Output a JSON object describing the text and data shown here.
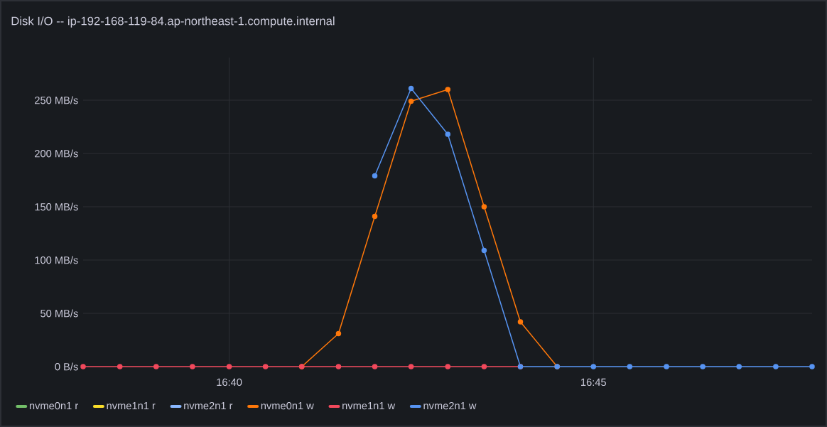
{
  "chart_data": {
    "type": "line",
    "title": "Disk I/O -- ip-192-168-119-84.ap-northeast-1.compute.internal",
    "x": [
      16.6333,
      16.6417,
      16.65,
      16.6583,
      16.6667,
      16.675,
      16.6833,
      16.6917,
      16.7,
      16.7083,
      16.7167,
      16.725,
      16.7333,
      16.7417,
      16.75,
      16.7583,
      16.7667,
      16.775,
      16.7833,
      16.7917,
      16.8
    ],
    "series": [
      {
        "name": "nvme0n1 r",
        "color": "#73bf69",
        "values": [
          null,
          null,
          null,
          null,
          null,
          null,
          null,
          null,
          null,
          null,
          null,
          null,
          null,
          null,
          null,
          null,
          null,
          null,
          null,
          null,
          null
        ]
      },
      {
        "name": "nvme1n1 r",
        "color": "#fade2a",
        "values": [
          null,
          null,
          null,
          null,
          null,
          null,
          null,
          null,
          null,
          null,
          null,
          null,
          null,
          null,
          null,
          null,
          null,
          null,
          null,
          null,
          null
        ]
      },
      {
        "name": "nvme2n1 r",
        "color": "#8ab8ff",
        "values": [
          null,
          null,
          null,
          null,
          null,
          null,
          null,
          null,
          null,
          null,
          null,
          null,
          null,
          null,
          null,
          null,
          null,
          null,
          null,
          null,
          null
        ]
      },
      {
        "name": "nvme0n1 w",
        "color": "#ff780a",
        "values": [
          null,
          null,
          null,
          null,
          null,
          null,
          0,
          31,
          141,
          249,
          260,
          150,
          42,
          0,
          null,
          null,
          null,
          null,
          null,
          null,
          null
        ]
      },
      {
        "name": "nvme1n1 w",
        "color": "#f2495c",
        "values": [
          0,
          0,
          0,
          0,
          0,
          0,
          0,
          0,
          0,
          0,
          0,
          0,
          0,
          null,
          null,
          null,
          null,
          null,
          null,
          null,
          null
        ]
      },
      {
        "name": "nvme2n1 w",
        "color": "#5794f2",
        "values": [
          null,
          null,
          null,
          null,
          null,
          null,
          null,
          null,
          179,
          261,
          218,
          109,
          0,
          0,
          0,
          0,
          0,
          0,
          0,
          0,
          0
        ]
      }
    ],
    "xlim": [
      16.6333,
      16.8
    ],
    "ylim": [
      0,
      290
    ],
    "xticks": [
      {
        "value": 16.6667,
        "label": "16:40"
      },
      {
        "value": 16.75,
        "label": "16:45"
      }
    ],
    "yticks": [
      {
        "value": 0,
        "label": "0 B/s"
      },
      {
        "value": 50,
        "label": "50 MB/s"
      },
      {
        "value": 100,
        "label": "100 MB/s"
      },
      {
        "value": 150,
        "label": "150 MB/s"
      },
      {
        "value": 200,
        "label": "200 MB/s"
      },
      {
        "value": 250,
        "label": "250 MB/s"
      }
    ],
    "grid": true,
    "legend": "bottom",
    "marker": "circle",
    "line_style": "solid"
  }
}
